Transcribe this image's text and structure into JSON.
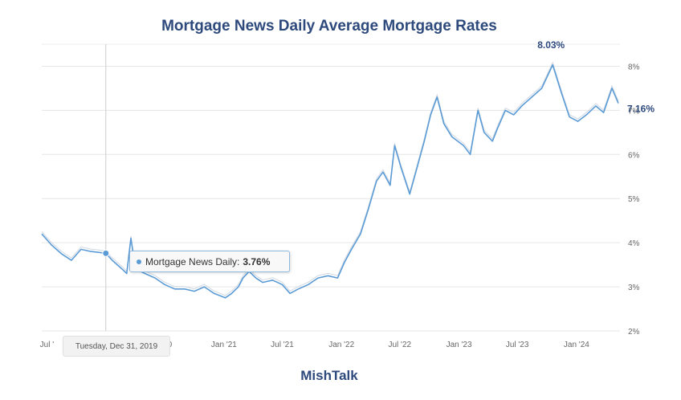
{
  "chart_data": {
    "type": "line",
    "title": "Mortgage News Daily Average Mortgage Rates",
    "footer": "MishTalk",
    "ylim": [
      2,
      8.5
    ],
    "y_ticks": [
      "2%",
      "3%",
      "4%",
      "5%",
      "6%",
      "7%",
      "8%"
    ],
    "y_tick_values": [
      2,
      3,
      4,
      5,
      6,
      7,
      8
    ],
    "x_ticks": [
      "Jul '",
      "l '20",
      "Jan '21",
      "Jul '21",
      "Jan '22",
      "Jul '22",
      "Jan '23",
      "Jul '23",
      "Jan '24"
    ],
    "x_tick_dates": [
      "2019-07-01",
      "2020-07-01",
      "2021-01-01",
      "2021-07-01",
      "2022-01-01",
      "2022-07-01",
      "2023-01-01",
      "2023-07-01",
      "2024-01-01"
    ],
    "grid": true,
    "series": [
      {
        "name": "Mortgage News Daily",
        "color": "#5b9bd5",
        "points": [
          [
            "2019-06-15",
            4.2
          ],
          [
            "2019-07-15",
            3.95
          ],
          [
            "2019-08-15",
            3.75
          ],
          [
            "2019-09-15",
            3.6
          ],
          [
            "2019-10-15",
            3.85
          ],
          [
            "2019-11-15",
            3.8
          ],
          [
            "2019-12-31",
            3.76
          ],
          [
            "2020-01-20",
            3.6
          ],
          [
            "2020-02-20",
            3.4
          ],
          [
            "2020-03-05",
            3.3
          ],
          [
            "2020-03-18",
            4.1
          ],
          [
            "2020-04-01",
            3.4
          ],
          [
            "2020-05-01",
            3.3
          ],
          [
            "2020-06-01",
            3.2
          ],
          [
            "2020-07-01",
            3.05
          ],
          [
            "2020-08-01",
            2.95
          ],
          [
            "2020-09-01",
            2.95
          ],
          [
            "2020-10-01",
            2.9
          ],
          [
            "2020-11-01",
            3.0
          ],
          [
            "2020-12-01",
            2.85
          ],
          [
            "2021-01-05",
            2.75
          ],
          [
            "2021-01-25",
            2.85
          ],
          [
            "2021-02-15",
            3.0
          ],
          [
            "2021-03-01",
            3.2
          ],
          [
            "2021-03-20",
            3.35
          ],
          [
            "2021-04-10",
            3.2
          ],
          [
            "2021-05-01",
            3.1
          ],
          [
            "2021-06-01",
            3.15
          ],
          [
            "2021-07-01",
            3.05
          ],
          [
            "2021-07-25",
            2.85
          ],
          [
            "2021-08-20",
            2.95
          ],
          [
            "2021-09-20",
            3.05
          ],
          [
            "2021-10-20",
            3.2
          ],
          [
            "2021-11-20",
            3.25
          ],
          [
            "2021-12-20",
            3.2
          ],
          [
            "2022-01-10",
            3.55
          ],
          [
            "2022-02-01",
            3.85
          ],
          [
            "2022-03-01",
            4.2
          ],
          [
            "2022-03-25",
            4.75
          ],
          [
            "2022-04-20",
            5.4
          ],
          [
            "2022-05-10",
            5.6
          ],
          [
            "2022-06-01",
            5.3
          ],
          [
            "2022-06-15",
            6.2
          ],
          [
            "2022-07-05",
            5.7
          ],
          [
            "2022-08-01",
            5.1
          ],
          [
            "2022-08-20",
            5.6
          ],
          [
            "2022-09-15",
            6.3
          ],
          [
            "2022-10-05",
            6.9
          ],
          [
            "2022-10-25",
            7.3
          ],
          [
            "2022-11-15",
            6.7
          ],
          [
            "2022-12-10",
            6.4
          ],
          [
            "2023-01-15",
            6.2
          ],
          [
            "2023-02-05",
            6.0
          ],
          [
            "2023-03-01",
            7.0
          ],
          [
            "2023-03-20",
            6.5
          ],
          [
            "2023-04-15",
            6.3
          ],
          [
            "2023-05-01",
            6.6
          ],
          [
            "2023-05-25",
            7.0
          ],
          [
            "2023-06-20",
            6.9
          ],
          [
            "2023-07-15",
            7.1
          ],
          [
            "2023-08-15",
            7.3
          ],
          [
            "2023-09-15",
            7.5
          ],
          [
            "2023-10-19",
            8.03
          ],
          [
            "2023-11-15",
            7.4
          ],
          [
            "2023-12-10",
            6.85
          ],
          [
            "2024-01-05",
            6.75
          ],
          [
            "2024-02-01",
            6.9
          ],
          [
            "2024-03-01",
            7.1
          ],
          [
            "2024-03-25",
            6.95
          ],
          [
            "2024-04-20",
            7.5
          ],
          [
            "2024-05-10",
            7.16
          ]
        ]
      }
    ],
    "annotations": [
      {
        "text": "8.03%",
        "date": "2023-10-19",
        "value": 8.03
      },
      {
        "text": "7.16%",
        "date": "2024-05-10",
        "value": 7.16
      }
    ],
    "crosshair_date": "2019-12-31",
    "tooltip": {
      "label": "Mortgage News Daily:",
      "value": "3.76%",
      "date": "Tuesday, Dec 31, 2019"
    }
  }
}
